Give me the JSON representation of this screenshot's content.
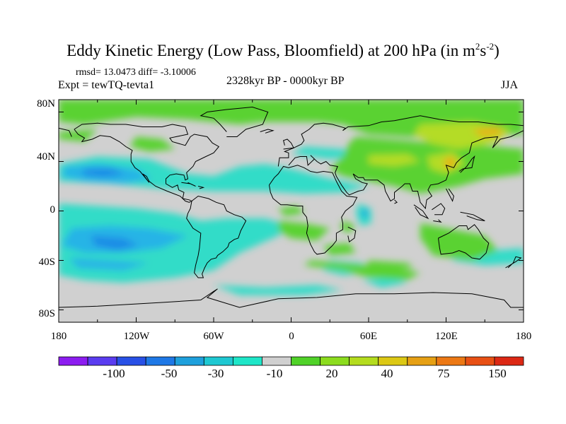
{
  "header": {
    "title_main": "Eddy Kinetic Energy (Low Pass, Bloomfield) at 200 hPa (in m",
    "title_sup1": "2",
    "title_mid": "s",
    "title_sup2": "-2",
    "title_end": ")",
    "stats": "rmsd= 13.0473 diff= -3.10006",
    "experiment": "Expt = tewTQ-tevta1",
    "period": "2328kyr BP - 0000kyr BP",
    "season": "JJA"
  },
  "axes": {
    "y_labels": [
      "80N",
      "40N",
      "0",
      "40S",
      "80S"
    ],
    "x_labels": [
      "180",
      "120W",
      "60W",
      "0",
      "60E",
      "120E",
      "180"
    ]
  },
  "colorbar": {
    "colors": [
      "#8c1cf0",
      "#5a3cf0",
      "#2850e6",
      "#1e78e6",
      "#1ea0dc",
      "#1ec8d2",
      "#1ee6c8",
      "#d0d0d0",
      "#50d228",
      "#8cdc1e",
      "#b4dc1e",
      "#dcc814",
      "#e6a014",
      "#ec7814",
      "#e85014",
      "#dc2814"
    ],
    "labels": [
      "-100",
      "-50",
      "-30",
      "-10",
      "20",
      "40",
      "75",
      "150"
    ]
  },
  "colors": {
    "neutral": "#d0d0d0",
    "cyan": "#32dcc8",
    "light_blue": "#28b4e6",
    "blue": "#1e8ce6",
    "green": "#5ad232",
    "yellow_green": "#b4dc28",
    "gold": "#e6b414"
  }
}
